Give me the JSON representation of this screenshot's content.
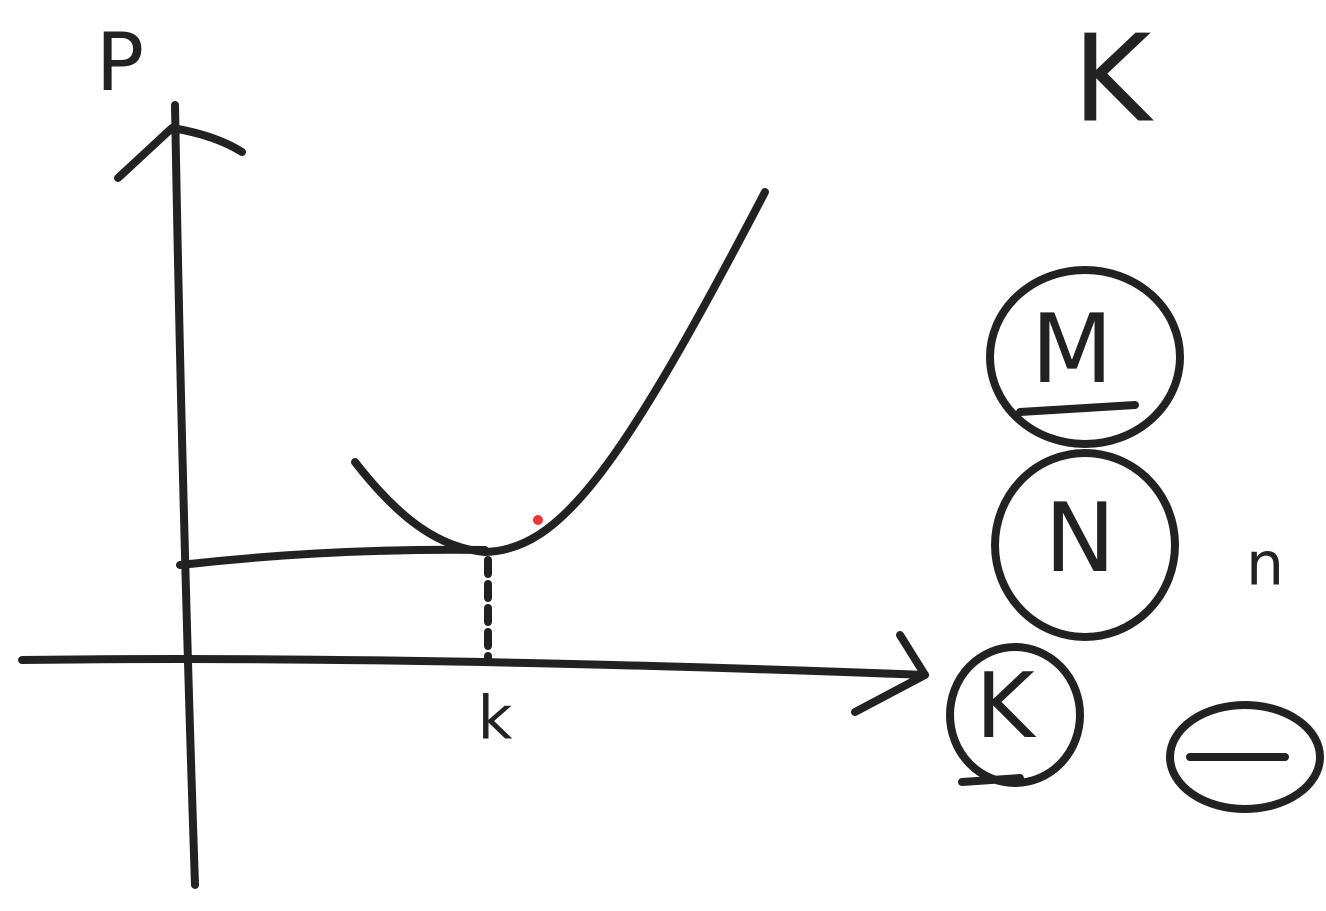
{
  "labels": {
    "y_axis": "P",
    "x_axis": "k",
    "corner": "K",
    "circles": [
      "M",
      "N",
      "K"
    ],
    "side": "n"
  }
}
